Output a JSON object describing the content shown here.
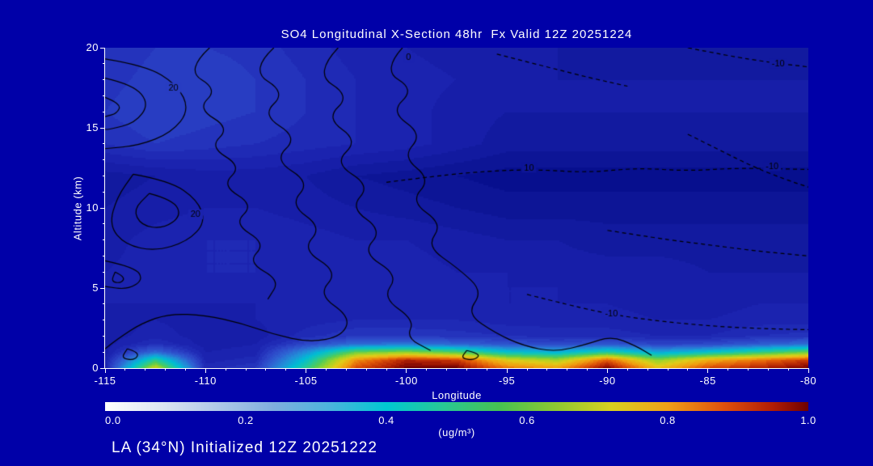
{
  "colors": {
    "background": "#0000a8",
    "text": "#ffffff",
    "contour": "#000000",
    "axis": "#ffffff"
  },
  "footer": {
    "text": "LA (34°N) Initialized 12Z 20251222"
  },
  "chart_data": {
    "type": "heatmap",
    "title": "SO4 Longitudinal X-Section 48hr  Fx Valid 12Z 20251224",
    "xlabel": "Longitude",
    "ylabel": "Altitude (km)",
    "xlim": [
      -115,
      -80
    ],
    "ylim": [
      0,
      20
    ],
    "x_ticks": [
      -115,
      -110,
      -105,
      -100,
      -95,
      -90,
      -85,
      -80
    ],
    "y_ticks": [
      0,
      5,
      10,
      15,
      20
    ],
    "x_minor_step": 1,
    "y_minor_step": 1,
    "grid": false,
    "fill_levels": 50,
    "x": [
      -115,
      -112.5,
      -110,
      -107.5,
      -105,
      -102.5,
      -100,
      -97.5,
      -95,
      -92.5,
      -90,
      -87.5,
      -85,
      -82.5,
      -80
    ],
    "y": [
      0,
      0.5,
      1,
      1.5,
      2,
      3,
      4,
      5,
      6,
      8,
      10,
      12,
      14,
      16,
      18,
      20
    ],
    "values": [
      [
        0.1,
        0.7,
        0.12,
        0.15,
        0.5,
        0.9,
        1.0,
        1.0,
        0.85,
        0.8,
        1.0,
        0.75,
        0.9,
        0.95,
        1.0
      ],
      [
        0.09,
        0.5,
        0.1,
        0.12,
        0.42,
        0.82,
        0.95,
        0.92,
        0.72,
        0.65,
        0.88,
        0.62,
        0.78,
        0.85,
        0.92
      ],
      [
        0.08,
        0.25,
        0.09,
        0.1,
        0.32,
        0.58,
        0.62,
        0.55,
        0.42,
        0.38,
        0.48,
        0.36,
        0.42,
        0.5,
        0.58
      ],
      [
        0.08,
        0.13,
        0.08,
        0.09,
        0.18,
        0.26,
        0.27,
        0.24,
        0.2,
        0.18,
        0.21,
        0.17,
        0.18,
        0.22,
        0.26
      ],
      [
        0.08,
        0.1,
        0.08,
        0.08,
        0.12,
        0.15,
        0.15,
        0.14,
        0.13,
        0.12,
        0.12,
        0.11,
        0.11,
        0.13,
        0.14
      ],
      [
        0.08,
        0.09,
        0.08,
        0.09,
        0.1,
        0.11,
        0.11,
        0.11,
        0.1,
        0.1,
        0.1,
        0.09,
        0.09,
        0.1,
        0.1
      ],
      [
        0.09,
        0.09,
        0.09,
        0.09,
        0.1,
        0.1,
        0.1,
        0.1,
        0.09,
        0.09,
        0.09,
        0.08,
        0.08,
        0.09,
        0.09
      ],
      [
        0.09,
        0.1,
        0.1,
        0.1,
        0.11,
        0.1,
        0.1,
        0.1,
        0.09,
        0.09,
        0.08,
        0.08,
        0.08,
        0.08,
        0.08
      ],
      [
        0.09,
        0.1,
        0.11,
        0.11,
        0.11,
        0.1,
        0.1,
        0.09,
        0.09,
        0.08,
        0.08,
        0.08,
        0.07,
        0.07,
        0.07
      ],
      [
        0.08,
        0.1,
        0.11,
        0.11,
        0.1,
        0.09,
        0.09,
        0.08,
        0.07,
        0.07,
        0.06,
        0.06,
        0.06,
        0.06,
        0.06
      ],
      [
        0.07,
        0.08,
        0.09,
        0.09,
        0.08,
        0.07,
        0.06,
        0.05,
        0.04,
        0.04,
        0.04,
        0.04,
        0.04,
        0.04,
        0.04
      ],
      [
        0.06,
        0.07,
        0.08,
        0.08,
        0.07,
        0.05,
        0.04,
        0.03,
        0.02,
        0.02,
        0.02,
        0.02,
        0.02,
        0.02,
        0.02
      ],
      [
        0.13,
        0.15,
        0.14,
        0.13,
        0.12,
        0.11,
        0.1,
        0.08,
        0.06,
        0.06,
        0.06,
        0.06,
        0.06,
        0.06,
        0.06
      ],
      [
        0.15,
        0.17,
        0.16,
        0.15,
        0.13,
        0.11,
        0.1,
        0.08,
        0.07,
        0.07,
        0.07,
        0.07,
        0.07,
        0.07,
        0.07
      ],
      [
        0.14,
        0.16,
        0.17,
        0.15,
        0.13,
        0.11,
        0.1,
        0.09,
        0.08,
        0.07,
        0.07,
        0.07,
        0.07,
        0.07,
        0.07
      ],
      [
        0.13,
        0.15,
        0.15,
        0.14,
        0.12,
        0.1,
        0.09,
        0.08,
        0.07,
        0.07,
        0.06,
        0.06,
        0.06,
        0.06,
        0.06
      ]
    ],
    "plot_colormap": [
      [
        0.0,
        "#00096e"
      ],
      [
        0.02,
        "#070f8e"
      ],
      [
        0.05,
        "#10189a"
      ],
      [
        0.08,
        "#171ea8"
      ],
      [
        0.11,
        "#1d26b2"
      ],
      [
        0.14,
        "#2433bc"
      ],
      [
        0.18,
        "#2c46c8"
      ],
      [
        0.24,
        "#2e62d2"
      ],
      [
        0.32,
        "#2090d8"
      ],
      [
        0.4,
        "#00bcd4"
      ],
      [
        0.48,
        "#20c8a0"
      ],
      [
        0.56,
        "#50cc58"
      ],
      [
        0.64,
        "#a0d428"
      ],
      [
        0.72,
        "#e0cc18"
      ],
      [
        0.8,
        "#f0a010"
      ],
      [
        0.88,
        "#e05808"
      ],
      [
        0.95,
        "#b02004"
      ],
      [
        1.0,
        "#700000"
      ]
    ],
    "colorbar": {
      "label": "(ug/m³)",
      "min": 0.0,
      "max": 1.0,
      "ticks": [
        "0.0",
        "0.2",
        "0.4",
        "0.6",
        "0.8",
        "1.0"
      ],
      "colormap": [
        [
          0.0,
          "#ffffff"
        ],
        [
          0.08,
          "#dce6f2"
        ],
        [
          0.16,
          "#b0c8e8"
        ],
        [
          0.24,
          "#7faede"
        ],
        [
          0.32,
          "#4bb4dc"
        ],
        [
          0.4,
          "#00c8d2"
        ],
        [
          0.48,
          "#28c896"
        ],
        [
          0.56,
          "#46c152"
        ],
        [
          0.64,
          "#8cc832"
        ],
        [
          0.72,
          "#d8d020"
        ],
        [
          0.8,
          "#f0a018"
        ],
        [
          0.88,
          "#e0500c"
        ],
        [
          0.95,
          "#b01c04"
        ],
        [
          1.0,
          "#6e0000"
        ]
      ]
    },
    "overlay_contours": [
      {
        "label": "0",
        "dash": false,
        "label_at": [
          -99.9,
          19.4
        ],
        "points": [
          [
            -100.2,
            20
          ],
          [
            -101.2,
            18.6
          ],
          [
            -99.6,
            17.4
          ],
          [
            -100.8,
            16
          ],
          [
            -99.2,
            14.6
          ],
          [
            -100.2,
            13.2
          ],
          [
            -98.8,
            11.8
          ],
          [
            -99.8,
            10.4
          ],
          [
            -98.2,
            9
          ],
          [
            -99,
            7.6
          ],
          [
            -97.4,
            6.2
          ],
          [
            -96.2,
            4.8
          ],
          [
            -97,
            3.4
          ],
          [
            -95.6,
            2.2
          ],
          [
            -94.2,
            1.4
          ],
          [
            -92.6,
            1.0
          ],
          [
            -91.0,
            1.5
          ],
          [
            -89.8,
            2.0
          ],
          [
            -88.6,
            1.4
          ],
          [
            -87.8,
            0.8
          ]
        ]
      },
      {
        "label": "",
        "dash": false,
        "label_at": null,
        "points": [
          [
            -103.4,
            20
          ],
          [
            -104.6,
            18.4
          ],
          [
            -102.8,
            17
          ],
          [
            -104,
            15.6
          ],
          [
            -102.4,
            14.2
          ],
          [
            -103.6,
            12.8
          ],
          [
            -101.8,
            11.4
          ],
          [
            -102.8,
            10
          ],
          [
            -101.2,
            8.6
          ],
          [
            -102.2,
            7.2
          ],
          [
            -100.4,
            5.8
          ],
          [
            -101.2,
            4.4
          ],
          [
            -99.6,
            3
          ],
          [
            -100,
            1.9
          ],
          [
            -98.8,
            1.1
          ]
        ]
      },
      {
        "label": "",
        "dash": false,
        "label_at": null,
        "points": [
          [
            -106.6,
            20
          ],
          [
            -107.8,
            18.6
          ],
          [
            -106,
            17.2
          ],
          [
            -107.2,
            15.8
          ],
          [
            -105.4,
            14.4
          ],
          [
            -106.6,
            13
          ],
          [
            -104.8,
            11.6
          ],
          [
            -105.8,
            10.2
          ],
          [
            -104.2,
            8.8
          ],
          [
            -105.2,
            7.4
          ],
          [
            -103.4,
            6
          ],
          [
            -104.4,
            4.6
          ],
          [
            -102.8,
            3.2
          ],
          [
            -103.2,
            2
          ],
          [
            -104.8,
            1.6
          ],
          [
            -106.6,
            2.1
          ],
          [
            -108.2,
            2.8
          ],
          [
            -110,
            3.3
          ],
          [
            -111.8,
            3.4
          ],
          [
            -113.2,
            2.8
          ],
          [
            -114.4,
            1.8
          ],
          [
            -115,
            1.2
          ]
        ]
      },
      {
        "label": "",
        "dash": false,
        "label_at": null,
        "points": [
          [
            -109.8,
            20
          ],
          [
            -111,
            18.6
          ],
          [
            -109.4,
            17.4
          ],
          [
            -110.4,
            16.2
          ],
          [
            -108.8,
            15
          ],
          [
            -109.8,
            13.8
          ],
          [
            -108.2,
            12.6
          ],
          [
            -109.2,
            11.4
          ],
          [
            -107.6,
            10.2
          ],
          [
            -108.6,
            9
          ],
          [
            -107,
            7.8
          ],
          [
            -107.9,
            6.6
          ],
          [
            -106.3,
            5.5
          ],
          [
            -106.9,
            4.3
          ]
        ]
      },
      {
        "label": "20",
        "dash": false,
        "label_at": [
          -111.6,
          17.5
        ],
        "points": [
          [
            -115,
            19.3
          ],
          [
            -113,
            18.9
          ],
          [
            -111.4,
            17.7
          ],
          [
            -110.8,
            16.1
          ],
          [
            -111.7,
            14.7
          ],
          [
            -113.3,
            13.9
          ],
          [
            -115,
            13.7
          ]
        ]
      },
      {
        "label": "",
        "dash": false,
        "label_at": null,
        "points": [
          [
            -115,
            18.1
          ],
          [
            -113.6,
            17.7
          ],
          [
            -112.8,
            16.5
          ],
          [
            -113.5,
            15.3
          ],
          [
            -114.8,
            14.9
          ],
          [
            -115,
            14.9
          ]
        ]
      },
      {
        "label": "",
        "dash": false,
        "label_at": null,
        "points": [
          [
            -115,
            16.9
          ],
          [
            -114.2,
            16.5
          ],
          [
            -114.4,
            15.9
          ],
          [
            -115,
            15.7
          ]
        ]
      },
      {
        "label": "20",
        "dash": false,
        "label_at": [
          -110.5,
          9.6
        ],
        "points": [
          [
            -113.6,
            12.1
          ],
          [
            -111.8,
            11.7
          ],
          [
            -110.4,
            10.5
          ],
          [
            -110,
            9.1
          ],
          [
            -110.9,
            7.9
          ],
          [
            -112.5,
            7.3
          ],
          [
            -114,
            7.7
          ],
          [
            -114.8,
            8.9
          ],
          [
            -114.4,
            10.7
          ],
          [
            -113.6,
            12.1
          ]
        ]
      },
      {
        "label": "",
        "dash": false,
        "label_at": null,
        "points": [
          [
            -112.8,
            10.9
          ],
          [
            -111.6,
            10.5
          ],
          [
            -111.2,
            9.5
          ],
          [
            -112.1,
            8.7
          ],
          [
            -113.2,
            8.9
          ],
          [
            -113.6,
            9.9
          ],
          [
            -112.8,
            10.9
          ]
        ]
      },
      {
        "label": "",
        "dash": false,
        "label_at": null,
        "points": [
          [
            -115,
            6.7
          ],
          [
            -113.5,
            6.3
          ],
          [
            -113.1,
            5.5
          ],
          [
            -113.9,
            4.9
          ],
          [
            -115,
            5.1
          ]
        ]
      },
      {
        "label": "",
        "dash": false,
        "label_at": null,
        "points": [
          [
            -114.5,
            6.0
          ],
          [
            -114,
            5.7
          ],
          [
            -114.2,
            5.3
          ],
          [
            -114.7,
            5.4
          ],
          [
            -114.5,
            6.0
          ]
        ]
      },
      {
        "label": "",
        "dash": false,
        "label_at": null,
        "points": [
          [
            -113.9,
            1.2
          ],
          [
            -113.3,
            1.0
          ],
          [
            -113.5,
            0.5
          ],
          [
            -114.2,
            0.6
          ],
          [
            -113.9,
            1.2
          ]
        ]
      },
      {
        "label": "",
        "dash": false,
        "label_at": null,
        "points": [
          [
            -97,
            1.1
          ],
          [
            -96.3,
            0.9
          ],
          [
            -96.6,
            0.5
          ],
          [
            -97.3,
            0.6
          ],
          [
            -97,
            1.1
          ]
        ]
      },
      {
        "label": "-10",
        "dash": true,
        "label_at": [
          -81.5,
          19.0
        ],
        "points": [
          [
            -86,
            20
          ],
          [
            -84,
            19.5
          ],
          [
            -82,
            19.1
          ],
          [
            -80,
            18.8
          ]
        ]
      },
      {
        "label": "",
        "dash": true,
        "label_at": null,
        "points": [
          [
            -95.5,
            19.6
          ],
          [
            -93,
            18.8
          ],
          [
            -90.8,
            18.1
          ],
          [
            -89,
            17.6
          ]
        ]
      },
      {
        "label": "10",
        "dash": true,
        "label_at": [
          -93.9,
          12.5
        ],
        "points": [
          [
            -101,
            11.6
          ],
          [
            -98.5,
            12
          ],
          [
            -96,
            12.3
          ],
          [
            -93.5,
            12.4
          ],
          [
            -91,
            12.2
          ],
          [
            -88.5,
            12.5
          ],
          [
            -86,
            12.3
          ],
          [
            -83.5,
            12.5
          ],
          [
            -80,
            12.4
          ]
        ]
      },
      {
        "label": "-10",
        "dash": true,
        "label_at": [
          -81.8,
          12.6
        ],
        "points": [
          [
            -86,
            14.6
          ],
          [
            -84.4,
            13.6
          ],
          [
            -82.8,
            12.6
          ],
          [
            -81.2,
            11.8
          ],
          [
            -80,
            11.3
          ]
        ]
      },
      {
        "label": "-10",
        "dash": true,
        "label_at": [
          -89.8,
          3.4
        ],
        "points": [
          [
            -94,
            4.6
          ],
          [
            -91.8,
            3.9
          ],
          [
            -89.6,
            3.3
          ],
          [
            -87.2,
            2.9
          ],
          [
            -84.6,
            2.6
          ],
          [
            -82,
            2.45
          ],
          [
            -80,
            2.4
          ]
        ]
      },
      {
        "label": "",
        "dash": true,
        "label_at": null,
        "points": [
          [
            -90,
            8.6
          ],
          [
            -87.5,
            8.1
          ],
          [
            -85,
            7.7
          ],
          [
            -82.5,
            7.3
          ],
          [
            -80,
            7.0
          ]
        ]
      }
    ]
  }
}
